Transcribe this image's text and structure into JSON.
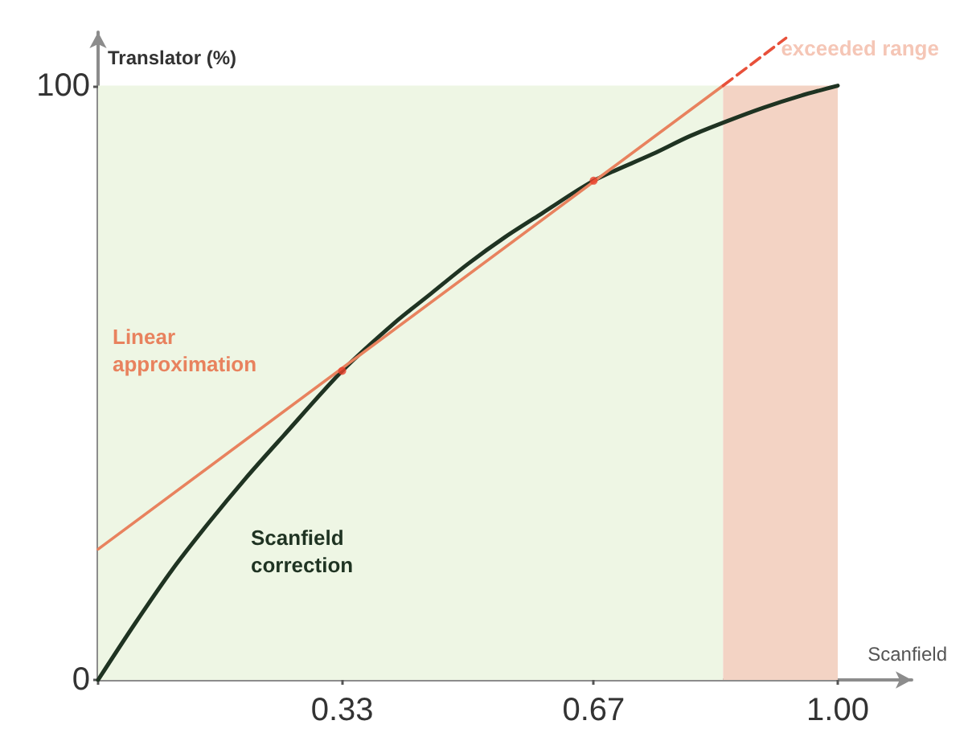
{
  "chart_data": {
    "type": "line",
    "xlabel": "Scanfield",
    "ylabel": "Translator (%)",
    "xlim": [
      0,
      1.1
    ],
    "ylim": [
      0,
      109
    ],
    "xticks": [
      {
        "value": 0,
        "label": null
      },
      0.33,
      0.67,
      {
        "value": 1,
        "label": "1.00"
      }
    ],
    "yticks": [
      0,
      100
    ],
    "series": [
      {
        "name": "Scanfield correction",
        "color": "#1f3322",
        "x": [
          0,
          0.05,
          0.1,
          0.15,
          0.2,
          0.25,
          0.33,
          0.4,
          0.45,
          0.5,
          0.55,
          0.6,
          0.67,
          0.75,
          0.8,
          0.85,
          0.9,
          0.95,
          1
        ],
        "values": [
          0,
          9.5,
          18.5,
          26.5,
          34,
          41,
          52,
          60,
          65,
          70,
          74.5,
          78.5,
          84,
          88.5,
          91.5,
          94,
          96.3,
          98.3,
          100
        ]
      },
      {
        "name": "Linear approximation",
        "color": "#e8825e",
        "x": [
          0,
          0.845
        ],
        "values": [
          22,
          100
        ]
      },
      {
        "color": "#e8503a",
        "x": [
          0.845,
          0.93
        ],
        "values": [
          100,
          108
        ],
        "line_style": "dashed"
      },
      {
        "type": "scatter",
        "color": "#e8402a",
        "x": [
          0.33,
          0.67
        ],
        "values": [
          52,
          84
        ],
        "marker": "circle"
      }
    ],
    "bands": [
      {
        "axis": "x",
        "from": 0,
        "to": 0.845,
        "color": "#eef6e4"
      },
      {
        "axis": "x",
        "from": 0.845,
        "to": 1,
        "label": "exceeded range",
        "color": "#f3d3c4"
      }
    ],
    "grid": false,
    "legend": false,
    "marker": "none",
    "line_style": "solid"
  }
}
